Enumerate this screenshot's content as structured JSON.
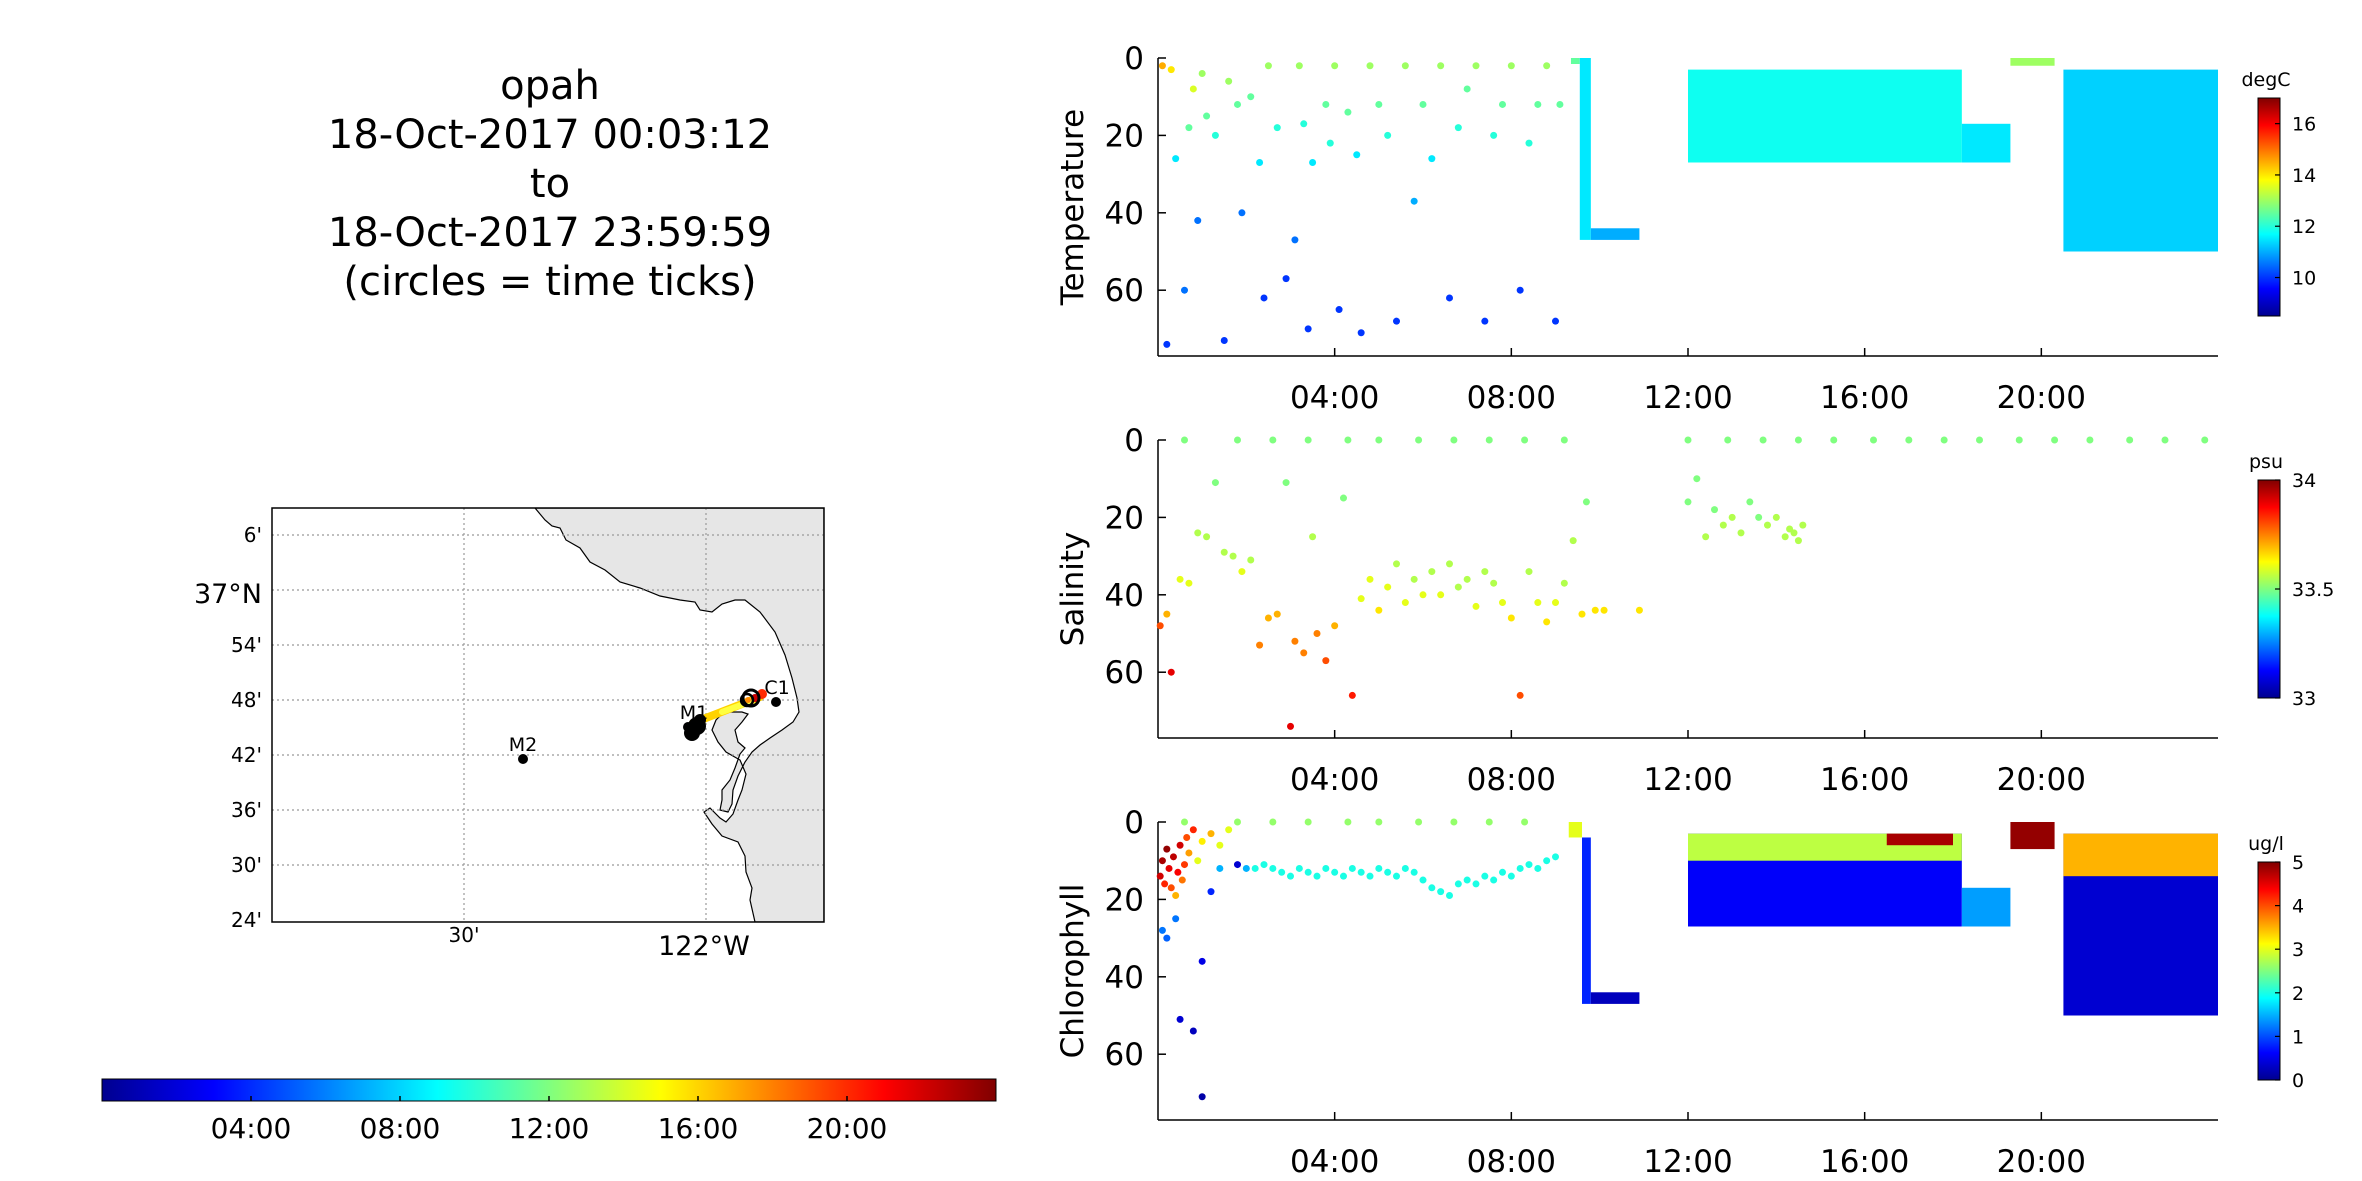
{
  "title_lines": [
    "opah",
    "18-Oct-2017 00:03:12",
    "to",
    "18-Oct-2017 23:59:59",
    "(circles = time ticks)"
  ],
  "map": {
    "lat_ticks": [
      "6'",
      "37°N",
      "54'",
      "48'",
      "42'",
      "36'",
      "30'",
      "24'"
    ],
    "lon_ticks": [
      "30'",
      "122°W"
    ],
    "stations": [
      {
        "name": "C1",
        "lon": -121.85,
        "lat": 36.8
      },
      {
        "name": "M1",
        "lon": -122.02,
        "lat": 36.75
      },
      {
        "name": "M2",
        "lon": -122.38,
        "lat": 36.7
      }
    ],
    "track": {
      "start": [
        -122.02,
        36.75
      ],
      "end": [
        -121.9,
        36.8
      ]
    }
  },
  "time_colorbar": {
    "labels": [
      "04:00",
      "08:00",
      "12:00",
      "16:00",
      "20:00"
    ],
    "colormap": "jet"
  },
  "colors": {
    "land": "#e6e6e6",
    "grid": "#999999",
    "axis": "#000000"
  },
  "chart_data": [
    {
      "type": "scatter",
      "ylabel": "Temperature",
      "xlabel": "",
      "xlim": [
        0,
        24
      ],
      "x_ticks": [
        4,
        8,
        12,
        16,
        20
      ],
      "x_ticklabels": [
        "04:00",
        "08:00",
        "12:00",
        "16:00",
        "20:00"
      ],
      "ylim": [
        0,
        77
      ],
      "y_reversed": true,
      "y_ticks": [
        0,
        20,
        40,
        60
      ],
      "y_ticklabels": [
        "0",
        "20",
        "40",
        "60"
      ],
      "colorbar": {
        "unit": "degC",
        "min": 8.5,
        "max": 17,
        "ticks": [
          10,
          12,
          14,
          16
        ],
        "ticklabels": [
          "10",
          "12",
          "14",
          "16"
        ]
      },
      "scatter_points": [
        [
          0.1,
          2,
          14.5
        ],
        [
          0.3,
          3,
          14
        ],
        [
          0.4,
          26,
          11.5
        ],
        [
          0.2,
          74,
          10
        ],
        [
          0.6,
          60,
          10.5
        ],
        [
          0.7,
          18,
          12.5
        ],
        [
          0.8,
          8,
          13.5
        ],
        [
          1.0,
          4,
          13
        ],
        [
          1.1,
          15,
          12.5
        ],
        [
          0.9,
          42,
          10.5
        ],
        [
          1.3,
          20,
          12
        ],
        [
          1.6,
          6,
          13
        ],
        [
          1.8,
          12,
          12.5
        ],
        [
          1.9,
          40,
          10.5
        ],
        [
          1.5,
          73,
          10
        ],
        [
          2.1,
          10,
          12.5
        ],
        [
          2.3,
          27,
          11.5
        ],
        [
          2.5,
          2,
          13
        ],
        [
          2.4,
          62,
          10
        ],
        [
          2.7,
          18,
          12
        ],
        [
          2.9,
          57,
          10
        ],
        [
          3.1,
          47,
          10.5
        ],
        [
          3.2,
          2,
          13
        ],
        [
          3.3,
          17,
          12
        ],
        [
          3.5,
          27,
          11.5
        ],
        [
          3.4,
          70,
          10
        ],
        [
          3.8,
          12,
          12.5
        ],
        [
          3.9,
          22,
          12
        ],
        [
          4.0,
          2,
          13
        ],
        [
          4.1,
          65,
          10
        ],
        [
          4.3,
          14,
          12.5
        ],
        [
          4.5,
          25,
          11.5
        ],
        [
          4.6,
          71,
          10
        ],
        [
          4.8,
          2,
          13
        ],
        [
          5.0,
          12,
          12.5
        ],
        [
          5.2,
          20,
          12
        ],
        [
          5.4,
          68,
          10
        ],
        [
          5.6,
          2,
          13
        ],
        [
          5.8,
          37,
          11
        ],
        [
          6.0,
          12,
          12.5
        ],
        [
          6.2,
          26,
          11.5
        ],
        [
          6.4,
          2,
          13
        ],
        [
          6.6,
          62,
          10
        ],
        [
          6.8,
          18,
          12
        ],
        [
          7.0,
          8,
          12.5
        ],
        [
          7.2,
          2,
          13
        ],
        [
          7.4,
          68,
          10
        ],
        [
          7.6,
          20,
          12
        ],
        [
          7.8,
          12,
          12.5
        ],
        [
          8.0,
          2,
          13
        ],
        [
          8.2,
          60,
          10
        ],
        [
          8.4,
          22,
          12
        ],
        [
          8.6,
          12,
          12.5
        ],
        [
          8.8,
          2,
          13
        ],
        [
          9.0,
          68,
          10
        ],
        [
          9.1,
          12,
          12.5
        ]
      ],
      "dense_segments": [
        {
          "x_start": 9.35,
          "x_end": 9.55,
          "depth_top": 0,
          "depth_bottom": 0,
          "color_value": 12.5
        },
        {
          "x_start": 9.55,
          "x_end": 9.8,
          "depth_top": 0,
          "depth_bottom": 47,
          "color_value": 11.5
        },
        {
          "x_start": 9.8,
          "x_end": 10.9,
          "depth_top": 44,
          "depth_bottom": 47,
          "color_value": 11
        },
        {
          "x_start": 12.0,
          "x_end": 18.2,
          "depth_top": 3,
          "depth_bottom": 27,
          "color_value": 11.8
        },
        {
          "x_start": 18.2,
          "x_end": 19.3,
          "depth_top": 17,
          "depth_bottom": 27,
          "color_value": 11.5
        },
        {
          "x_start": 19.3,
          "x_end": 20.3,
          "depth_top": 0,
          "depth_bottom": 2,
          "color_value": 13
        },
        {
          "x_start": 20.5,
          "x_end": 24.0,
          "depth_top": 3,
          "depth_bottom": 50,
          "color_value": 11.3
        }
      ]
    },
    {
      "type": "scatter",
      "ylabel": "Salinity",
      "xlabel": "",
      "xlim": [
        0,
        24
      ],
      "x_ticks": [
        4,
        8,
        12,
        16,
        20
      ],
      "x_ticklabels": [
        "04:00",
        "08:00",
        "12:00",
        "16:00",
        "20:00"
      ],
      "ylim": [
        0,
        77
      ],
      "y_reversed": true,
      "y_ticks": [
        0,
        20,
        40,
        60
      ],
      "y_ticklabels": [
        "0",
        "20",
        "40",
        "60"
      ],
      "colorbar": {
        "unit": "psu",
        "min": 33,
        "max": 34,
        "ticks": [
          33,
          33.5,
          34
        ],
        "ticklabels": [
          "33",
          "33.5",
          "34"
        ]
      },
      "scatter_points": [
        [
          0.05,
          48,
          33.8
        ],
        [
          0.2,
          45,
          33.7
        ],
        [
          0.3,
          60,
          33.9
        ],
        [
          0.5,
          36,
          33.6
        ],
        [
          0.7,
          37,
          33.6
        ],
        [
          0.9,
          24,
          33.55
        ],
        [
          1.1,
          25,
          33.55
        ],
        [
          1.3,
          11,
          33.5
        ],
        [
          1.5,
          29,
          33.55
        ],
        [
          1.7,
          30,
          33.55
        ],
        [
          1.9,
          34,
          33.6
        ],
        [
          2.1,
          31,
          33.55
        ],
        [
          2.3,
          53,
          33.75
        ],
        [
          2.5,
          46,
          33.7
        ],
        [
          2.7,
          45,
          33.7
        ],
        [
          2.9,
          11,
          33.5
        ],
        [
          3.0,
          74,
          33.9
        ],
        [
          3.1,
          52,
          33.75
        ],
        [
          3.3,
          55,
          33.75
        ],
        [
          3.5,
          25,
          33.55
        ],
        [
          3.6,
          50,
          33.75
        ],
        [
          3.8,
          57,
          33.8
        ],
        [
          4.0,
          48,
          33.7
        ],
        [
          4.2,
          15,
          33.5
        ],
        [
          4.4,
          66,
          33.85
        ],
        [
          4.6,
          41,
          33.6
        ],
        [
          4.8,
          36,
          33.6
        ],
        [
          5.0,
          44,
          33.65
        ],
        [
          5.2,
          38,
          33.6
        ],
        [
          5.4,
          32,
          33.55
        ],
        [
          5.6,
          42,
          33.6
        ],
        [
          5.8,
          36,
          33.55
        ],
        [
          6.0,
          40,
          33.6
        ],
        [
          6.2,
          34,
          33.55
        ],
        [
          6.4,
          40,
          33.6
        ],
        [
          6.6,
          32,
          33.55
        ],
        [
          6.8,
          38,
          33.55
        ],
        [
          7.0,
          36,
          33.55
        ],
        [
          7.2,
          43,
          33.6
        ],
        [
          7.4,
          34,
          33.55
        ],
        [
          7.6,
          37,
          33.55
        ],
        [
          7.8,
          42,
          33.6
        ],
        [
          8.0,
          46,
          33.65
        ],
        [
          8.2,
          66,
          33.8
        ],
        [
          8.4,
          34,
          33.55
        ],
        [
          8.6,
          42,
          33.6
        ],
        [
          8.8,
          47,
          33.65
        ],
        [
          9.0,
          42,
          33.6
        ],
        [
          9.2,
          37,
          33.55
        ],
        [
          9.4,
          26,
          33.55
        ],
        [
          9.6,
          45,
          33.65
        ],
        [
          9.7,
          16,
          33.5
        ],
        [
          9.9,
          44,
          33.65
        ],
        [
          10.1,
          44,
          33.65
        ],
        [
          10.9,
          44,
          33.65
        ],
        [
          12.0,
          16,
          33.5
        ],
        [
          12.2,
          10,
          33.5
        ],
        [
          12.4,
          25,
          33.55
        ],
        [
          12.6,
          18,
          33.5
        ],
        [
          12.8,
          22,
          33.55
        ],
        [
          13.0,
          20,
          33.55
        ],
        [
          13.2,
          24,
          33.55
        ],
        [
          13.4,
          16,
          33.5
        ],
        [
          13.6,
          20,
          33.5
        ],
        [
          13.8,
          22,
          33.55
        ],
        [
          14.0,
          20,
          33.55
        ],
        [
          14.2,
          25,
          33.55
        ],
        [
          14.3,
          23,
          33.55
        ],
        [
          14.4,
          24,
          33.55
        ],
        [
          14.5,
          26,
          33.55
        ],
        [
          14.6,
          22,
          33.55
        ]
      ],
      "surface_points_x": [
        0.6,
        1.8,
        2.6,
        3.4,
        4.3,
        5.0,
        5.9,
        6.7,
        7.5,
        8.3,
        9.2,
        12.0,
        12.9,
        13.7,
        14.5,
        15.3,
        16.2,
        17.0,
        17.8,
        18.6,
        19.5,
        20.3,
        21.1,
        22.0,
        22.8,
        23.7
      ],
      "surface_color_value": 33.5
    },
    {
      "type": "scatter",
      "ylabel": "Chlorophyll",
      "xlabel": "",
      "xlim": [
        0,
        24
      ],
      "x_ticks": [
        4,
        8,
        12,
        16,
        20
      ],
      "x_ticklabels": [
        "04:00",
        "08:00",
        "12:00",
        "16:00",
        "20:00"
      ],
      "ylim": [
        0,
        77
      ],
      "y_reversed": true,
      "y_ticks": [
        0,
        20,
        40,
        60
      ],
      "y_ticklabels": [
        "0",
        "20",
        "40",
        "60"
      ],
      "colorbar": {
        "unit": "ug/l",
        "min": 0,
        "max": 5,
        "ticks": [
          0,
          1,
          2,
          3,
          4,
          5
        ],
        "ticklabels": [
          "0",
          "1",
          "2",
          "3",
          "4",
          "5"
        ]
      },
      "scatter_points": [
        [
          0.05,
          14,
          4.6
        ],
        [
          0.1,
          10,
          4.8
        ],
        [
          0.15,
          16,
          4.2
        ],
        [
          0.2,
          7,
          4.9
        ],
        [
          0.25,
          12,
          4.5
        ],
        [
          0.3,
          17,
          4.0
        ],
        [
          0.35,
          9,
          4.7
        ],
        [
          0.4,
          19,
          3.5
        ],
        [
          0.45,
          13,
          4.4
        ],
        [
          0.5,
          6,
          4.6
        ],
        [
          0.55,
          15,
          3.8
        ],
        [
          0.6,
          11,
          4.1
        ],
        [
          0.65,
          4,
          4.0
        ],
        [
          0.7,
          8,
          3.6
        ],
        [
          0.8,
          2,
          4.2
        ],
        [
          0.9,
          10,
          3.0
        ],
        [
          1.0,
          5,
          3.2
        ],
        [
          1.2,
          3,
          3.5
        ],
        [
          1.4,
          6,
          3.0
        ],
        [
          1.6,
          2,
          3.0
        ],
        [
          0.1,
          28,
          1.2
        ],
        [
          0.2,
          30,
          1.1
        ],
        [
          0.4,
          25,
          1.2
        ],
        [
          0.5,
          51,
          0.4
        ],
        [
          0.8,
          54,
          0.3
        ],
        [
          1.0,
          36,
          0.5
        ],
        [
          1.0,
          71,
          0.2
        ],
        [
          1.2,
          18,
          0.8
        ],
        [
          1.4,
          12,
          1.5
        ],
        [
          1.8,
          11,
          0.4
        ],
        [
          2.0,
          12,
          1.5
        ],
        [
          2.2,
          12,
          2.0
        ],
        [
          2.4,
          11,
          2.0
        ],
        [
          2.6,
          12,
          2.0
        ],
        [
          2.8,
          13,
          2.0
        ],
        [
          3.0,
          14,
          2.0
        ],
        [
          3.2,
          12,
          2.0
        ],
        [
          3.4,
          13,
          2.0
        ],
        [
          3.6,
          14,
          2.0
        ],
        [
          3.8,
          12,
          2.0
        ],
        [
          4.0,
          13,
          2.0
        ],
        [
          4.2,
          14,
          2.0
        ],
        [
          4.4,
          12,
          2.0
        ],
        [
          4.6,
          13,
          2.0
        ],
        [
          4.8,
          14,
          2.0
        ],
        [
          5.0,
          12,
          2.0
        ],
        [
          5.2,
          13,
          2.0
        ],
        [
          5.4,
          14,
          2.0
        ],
        [
          5.6,
          12,
          2.0
        ],
        [
          5.8,
          13,
          2.0
        ],
        [
          6.0,
          15,
          2.0
        ],
        [
          6.2,
          17,
          2.0
        ],
        [
          6.4,
          18,
          2.0
        ],
        [
          6.6,
          19,
          2.0
        ],
        [
          6.8,
          16,
          2.0
        ],
        [
          7.0,
          15,
          2.0
        ],
        [
          7.2,
          16,
          2.0
        ],
        [
          7.4,
          14,
          2.0
        ],
        [
          7.6,
          15,
          2.0
        ],
        [
          7.8,
          13,
          2.0
        ],
        [
          8.0,
          14,
          2.0
        ],
        [
          8.2,
          12,
          2.0
        ],
        [
          8.4,
          11,
          2.0
        ],
        [
          8.6,
          12,
          2.0
        ],
        [
          8.8,
          10,
          2.0
        ],
        [
          9.0,
          9,
          2.0
        ],
        [
          0.6,
          0,
          2.6
        ],
        [
          1.8,
          0,
          2.6
        ],
        [
          2.6,
          0,
          2.6
        ],
        [
          3.4,
          0,
          2.6
        ],
        [
          4.3,
          0,
          2.6
        ],
        [
          5.0,
          0,
          2.6
        ],
        [
          5.9,
          0,
          2.6
        ],
        [
          6.7,
          0,
          2.6
        ],
        [
          7.5,
          0,
          2.6
        ],
        [
          8.3,
          0,
          2.6
        ]
      ],
      "dense_segments": [
        {
          "x_start": 9.3,
          "x_end": 9.6,
          "depth_top": 0,
          "depth_bottom": 4,
          "color_value": 3.0
        },
        {
          "x_start": 9.6,
          "x_end": 9.8,
          "depth_top": 4,
          "depth_bottom": 47,
          "color_value": 0.8
        },
        {
          "x_start": 9.8,
          "x_end": 10.9,
          "depth_top": 44,
          "depth_bottom": 47,
          "color_value": 0.3
        },
        {
          "x_start": 12.0,
          "x_end": 18.2,
          "depth_top": 3,
          "depth_bottom": 27,
          "color_value": 0.6
        },
        {
          "x_start": 12.0,
          "x_end": 18.2,
          "depth_top": 3,
          "depth_bottom": 10,
          "color_value": 2.8
        },
        {
          "x_start": 16.5,
          "x_end": 18.0,
          "depth_top": 3,
          "depth_bottom": 6,
          "color_value": 4.8
        },
        {
          "x_start": 18.2,
          "x_end": 19.3,
          "depth_top": 17,
          "depth_bottom": 27,
          "color_value": 1.4
        },
        {
          "x_start": 19.3,
          "x_end": 20.3,
          "depth_top": 0,
          "depth_bottom": 7,
          "color_value": 4.9
        },
        {
          "x_start": 20.5,
          "x_end": 24.0,
          "depth_top": 3,
          "depth_bottom": 50,
          "color_value": 0.4
        },
        {
          "x_start": 20.5,
          "x_end": 24.0,
          "depth_top": 3,
          "depth_bottom": 14,
          "color_value": 3.5
        }
      ]
    }
  ]
}
